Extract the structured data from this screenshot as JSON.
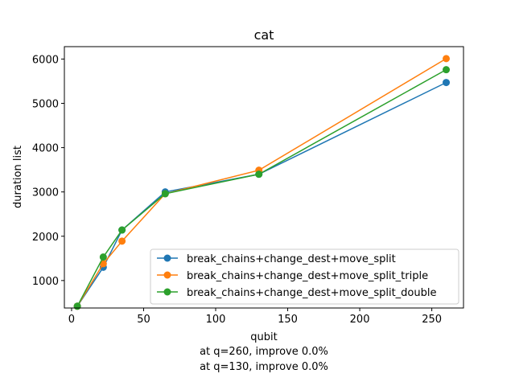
{
  "chart_data": {
    "type": "line",
    "title": "cat",
    "xlabel": "qubit",
    "ylabel": "duration list",
    "xlim": [
      -5,
      272
    ],
    "ylim": [
      380,
      6280
    ],
    "xticks": [
      0,
      50,
      100,
      150,
      200,
      250
    ],
    "yticks": [
      1000,
      2000,
      3000,
      4000,
      5000,
      6000
    ],
    "annotations": [
      "at q=260, improve 0.0%",
      "at q=130, improve 0.0%"
    ],
    "legend_position": "lower-right",
    "grid": false,
    "series": [
      {
        "name": "break_chains+change_dest+move_split",
        "color": "#1f77b4",
        "x": [
          4,
          22,
          35,
          65,
          130,
          260
        ],
        "y": [
          420,
          1300,
          2140,
          3000,
          3400,
          5470
        ]
      },
      {
        "name": "break_chains+change_dest+move_split_triple",
        "color": "#ff7f0e",
        "x": [
          4,
          22,
          35,
          65,
          130,
          260
        ],
        "y": [
          420,
          1380,
          1890,
          2960,
          3490,
          6010
        ]
      },
      {
        "name": "break_chains+change_dest+move_split_double",
        "color": "#2ca02c",
        "x": [
          4,
          22,
          35,
          65,
          130,
          260
        ],
        "y": [
          420,
          1530,
          2140,
          2960,
          3400,
          5760
        ]
      }
    ]
  }
}
